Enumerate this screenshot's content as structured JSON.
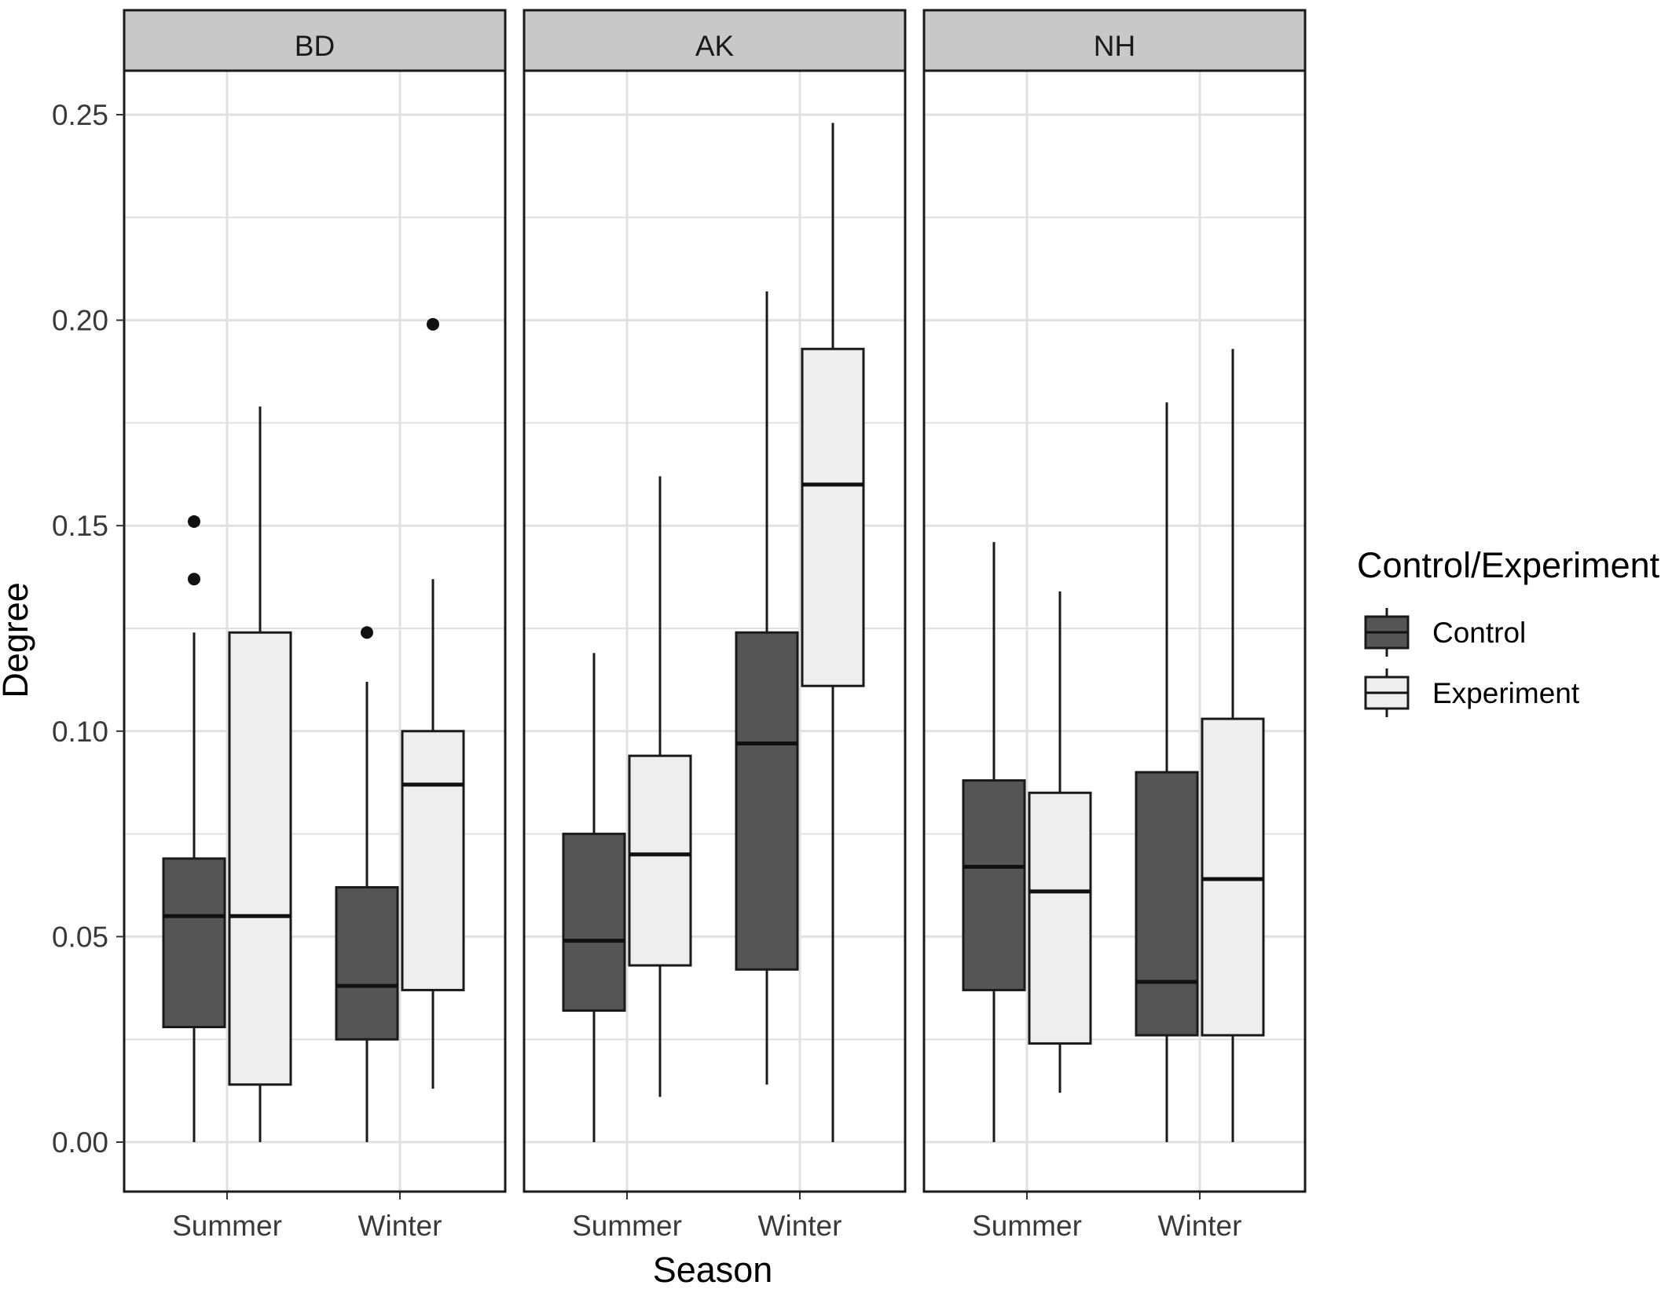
{
  "chart_data": {
    "type": "boxplot",
    "facets": [
      "BD",
      "AK",
      "NH"
    ],
    "categories": [
      "Summer",
      "Winter"
    ],
    "xlabel": "Season",
    "ylabel": "Degree",
    "ylim": [
      -0.012,
      0.26
    ],
    "yticks": [
      "0.00",
      "0.05",
      "0.10",
      "0.15",
      "0.20",
      "0.25"
    ],
    "grid": true,
    "legend": {
      "title": "Control/Experiment",
      "position": "right",
      "entries": [
        "Control",
        "Experiment"
      ]
    },
    "colors": {
      "Control": "#555555",
      "Experiment": "#eeeeee",
      "strip": "#c8c8c8",
      "grid": "#e0e0e0",
      "border": "#1a1a1a"
    },
    "boxes": [
      {
        "facet": "BD",
        "season": "Summer",
        "group": "Control",
        "min": 0.0,
        "q1": 0.028,
        "median": 0.055,
        "q3": 0.069,
        "max": 0.124,
        "outliers": [
          0.137,
          0.151
        ]
      },
      {
        "facet": "BD",
        "season": "Summer",
        "group": "Experiment",
        "min": 0.0,
        "q1": 0.014,
        "median": 0.055,
        "q3": 0.124,
        "max": 0.179,
        "outliers": []
      },
      {
        "facet": "BD",
        "season": "Winter",
        "group": "Control",
        "min": 0.0,
        "q1": 0.025,
        "median": 0.038,
        "q3": 0.062,
        "max": 0.112,
        "outliers": [
          0.124
        ]
      },
      {
        "facet": "BD",
        "season": "Winter",
        "group": "Experiment",
        "min": 0.013,
        "q1": 0.037,
        "median": 0.087,
        "q3": 0.1,
        "max": 0.137,
        "outliers": [
          0.199
        ]
      },
      {
        "facet": "AK",
        "season": "Summer",
        "group": "Control",
        "min": 0.0,
        "q1": 0.032,
        "median": 0.049,
        "q3": 0.075,
        "max": 0.119,
        "outliers": []
      },
      {
        "facet": "AK",
        "season": "Summer",
        "group": "Experiment",
        "min": 0.011,
        "q1": 0.043,
        "median": 0.07,
        "q3": 0.094,
        "max": 0.162,
        "outliers": []
      },
      {
        "facet": "AK",
        "season": "Winter",
        "group": "Control",
        "min": 0.014,
        "q1": 0.042,
        "median": 0.097,
        "q3": 0.124,
        "max": 0.207,
        "outliers": []
      },
      {
        "facet": "AK",
        "season": "Winter",
        "group": "Experiment",
        "min": 0.0,
        "q1": 0.111,
        "median": 0.16,
        "q3": 0.193,
        "max": 0.248,
        "outliers": []
      },
      {
        "facet": "NH",
        "season": "Summer",
        "group": "Control",
        "min": 0.0,
        "q1": 0.037,
        "median": 0.067,
        "q3": 0.088,
        "max": 0.146,
        "outliers": []
      },
      {
        "facet": "NH",
        "season": "Summer",
        "group": "Experiment",
        "min": 0.012,
        "q1": 0.024,
        "median": 0.061,
        "q3": 0.085,
        "max": 0.134,
        "outliers": []
      },
      {
        "facet": "NH",
        "season": "Winter",
        "group": "Control",
        "min": 0.0,
        "q1": 0.026,
        "median": 0.039,
        "q3": 0.09,
        "max": 0.18,
        "outliers": []
      },
      {
        "facet": "NH",
        "season": "Winter",
        "group": "Experiment",
        "min": 0.0,
        "q1": 0.026,
        "median": 0.064,
        "q3": 0.103,
        "max": 0.193,
        "outliers": []
      }
    ]
  }
}
